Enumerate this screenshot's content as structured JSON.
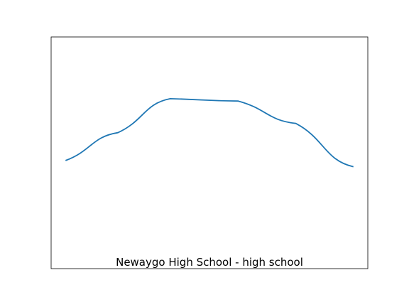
{
  "chart_data": {
    "type": "line",
    "title": "Newaygo High School - high school",
    "xlabel": "",
    "ylabel": "",
    "axes_visible": false,
    "grid": false,
    "x": [
      0,
      0.1818,
      0.3636,
      0.6,
      0.8,
      1.0
    ],
    "series": [
      {
        "color": "#1f77b4",
        "values": [
          0.4,
          0.58,
          0.8,
          0.785,
          0.64,
          0.36
        ]
      }
    ],
    "xlim": [
      -0.05,
      1.05
    ],
    "ylim": [
      -0.3,
      1.2
    ]
  }
}
